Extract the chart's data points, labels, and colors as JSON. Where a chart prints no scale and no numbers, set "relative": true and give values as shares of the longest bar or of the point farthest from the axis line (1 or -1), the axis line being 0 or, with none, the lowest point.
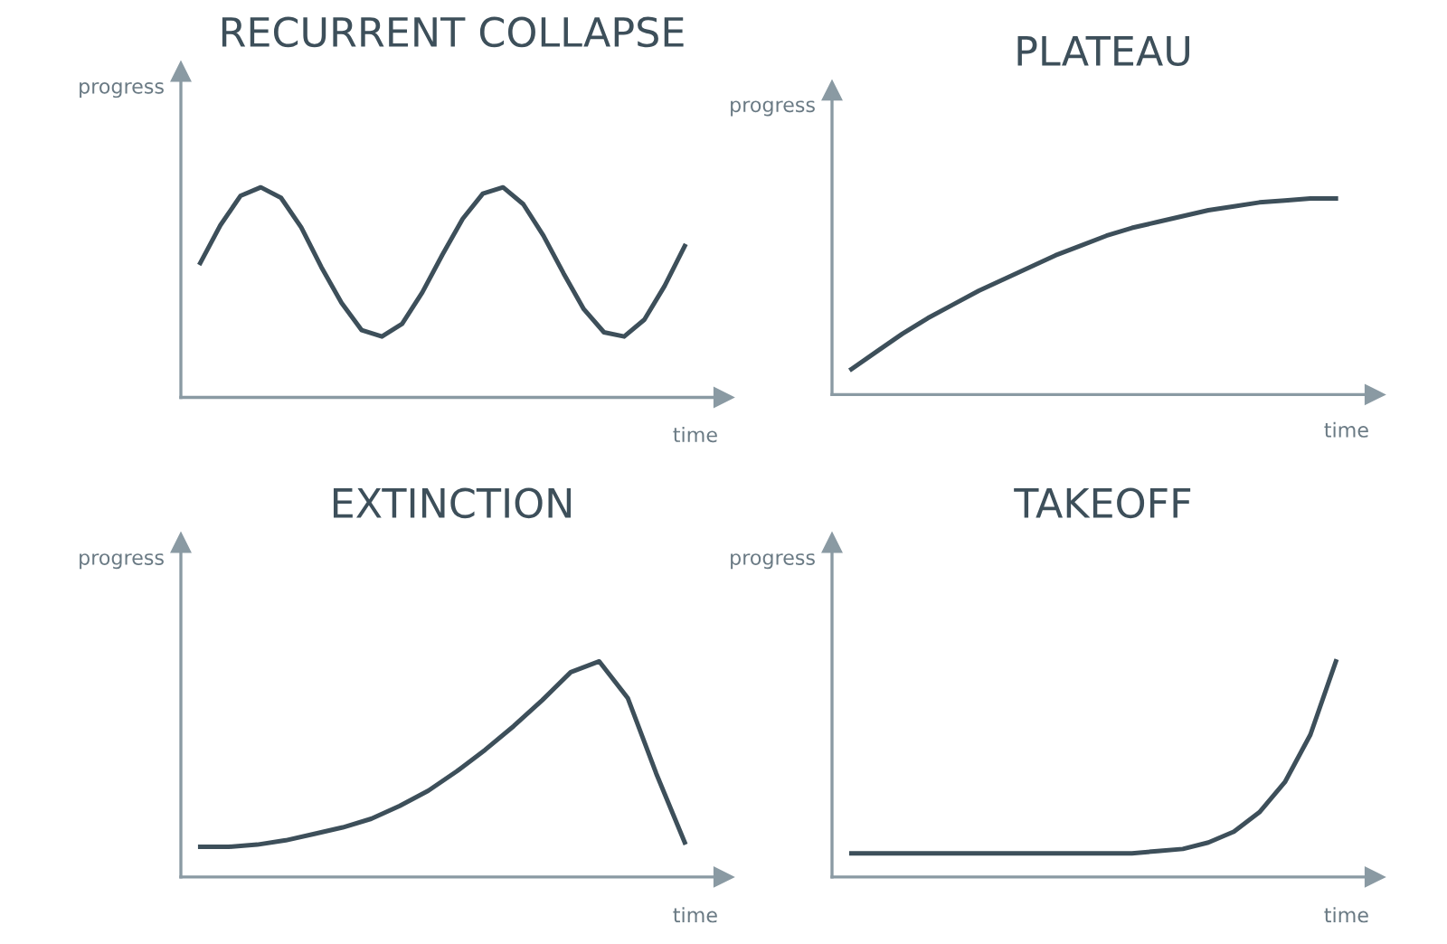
{
  "chart_data": [
    {
      "type": "line",
      "title": "RECURRENT COLLAPSE",
      "xlabel": "time",
      "ylabel": "progress",
      "relative": true,
      "line_style": "solid",
      "categories": [
        null,
        null,
        null,
        null,
        null,
        null,
        null,
        null,
        null,
        null,
        null,
        null,
        null,
        null,
        null,
        null,
        null,
        null,
        null,
        null,
        null,
        null,
        null,
        null,
        null
      ],
      "series": [
        {
          "color": "#3d4f5a",
          "values": [
            0.64,
            0.82,
            0.96,
            1.0,
            0.95,
            0.81,
            0.62,
            0.45,
            0.32,
            0.29,
            0.35,
            0.5,
            0.68,
            0.85,
            0.97,
            1.0,
            0.92,
            0.77,
            0.59,
            0.42,
            0.31,
            0.29,
            0.37,
            0.53,
            0.72
          ]
        }
      ]
    },
    {
      "type": "line",
      "title": "PLATEAU",
      "xlabel": "time",
      "ylabel": "progress",
      "relative": true,
      "line_style": "solid",
      "categories": [
        null,
        null,
        null,
        null,
        null,
        null,
        null,
        null,
        null,
        null,
        null,
        null,
        null,
        null,
        null,
        null,
        null,
        null,
        null,
        null
      ],
      "series": [
        {
          "color": "#3d4f5a",
          "values": [
            0.13,
            0.22,
            0.31,
            0.39,
            0.46,
            0.53,
            0.59,
            0.65,
            0.71,
            0.76,
            0.81,
            0.85,
            0.88,
            0.91,
            0.94,
            0.96,
            0.98,
            0.99,
            1.0,
            1.0
          ]
        }
      ]
    },
    {
      "type": "line",
      "title": "EXTINCTION",
      "xlabel": "time",
      "ylabel": "progress",
      "relative": true,
      "line_style": "solid",
      "categories": [
        null,
        null,
        null,
        null,
        null,
        null,
        null,
        null,
        null,
        null,
        null,
        null,
        null,
        null,
        null,
        null,
        null,
        null
      ],
      "series": [
        {
          "color": "#3d4f5a",
          "values": [
            0.14,
            0.14,
            0.15,
            0.17,
            0.2,
            0.23,
            0.27,
            0.33,
            0.4,
            0.49,
            0.59,
            0.7,
            0.82,
            0.95,
            1.0,
            0.83,
            0.48,
            0.16
          ]
        }
      ]
    },
    {
      "type": "line",
      "title": "TAKEOFF",
      "xlabel": "time",
      "ylabel": "progress",
      "relative": true,
      "line_style": "solid",
      "categories": [
        null,
        null,
        null,
        null,
        null,
        null,
        null,
        null,
        null,
        null,
        null,
        null,
        null,
        null,
        null,
        null,
        null,
        null,
        null,
        null
      ],
      "series": [
        {
          "color": "#3d4f5a",
          "values": [
            0.11,
            0.11,
            0.11,
            0.11,
            0.11,
            0.11,
            0.11,
            0.11,
            0.11,
            0.11,
            0.11,
            0.11,
            0.12,
            0.13,
            0.16,
            0.21,
            0.3,
            0.44,
            0.66,
            1.0
          ]
        }
      ]
    }
  ]
}
